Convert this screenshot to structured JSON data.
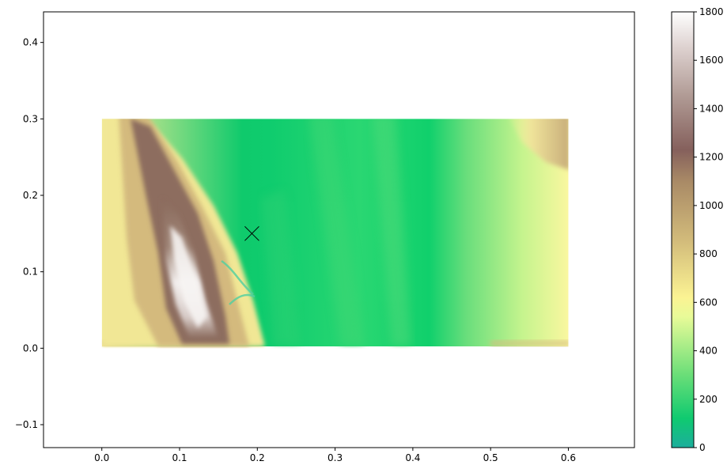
{
  "chart_data": {
    "type": "heatmap",
    "title": "",
    "xlabel": "",
    "ylabel": "",
    "xlim": [
      -0.075,
      0.685
    ],
    "ylim": [
      -0.13,
      0.44
    ],
    "x_ticks": [
      "0.0",
      "0.1",
      "0.2",
      "0.3",
      "0.4",
      "0.5",
      "0.6"
    ],
    "y_ticks": [
      "−0.1",
      "0.0",
      "0.1",
      "0.2",
      "0.3",
      "0.4"
    ],
    "raster_extent": {
      "x": [
        0.0,
        0.6
      ],
      "y": [
        0.0,
        0.3
      ]
    },
    "marker": {
      "x": 0.193,
      "y": 0.15,
      "symbol": "x",
      "color": "#000000"
    },
    "colorbar": {
      "min": 0,
      "max": 1800,
      "ticks": [
        "0",
        "200",
        "400",
        "600",
        "800",
        "1000",
        "1200",
        "1400",
        "1600",
        "1800"
      ],
      "colormap": "terrain",
      "stops": [
        {
          "value": 0,
          "color": "#1cae9c"
        },
        {
          "value": 120,
          "color": "#0fca70"
        },
        {
          "value": 300,
          "color": "#6ade78"
        },
        {
          "value": 540,
          "color": "#e8fb98"
        },
        {
          "value": 620,
          "color": "#fbf393"
        },
        {
          "value": 850,
          "color": "#d3bc7b"
        },
        {
          "value": 1100,
          "color": "#a98a66"
        },
        {
          "value": 1230,
          "color": "#85605c"
        },
        {
          "value": 1450,
          "color": "#b09a94"
        },
        {
          "value": 1650,
          "color": "#ddd1cf"
        },
        {
          "value": 1800,
          "color": "#fefefe"
        }
      ]
    },
    "grid": false,
    "legend": "none"
  }
}
